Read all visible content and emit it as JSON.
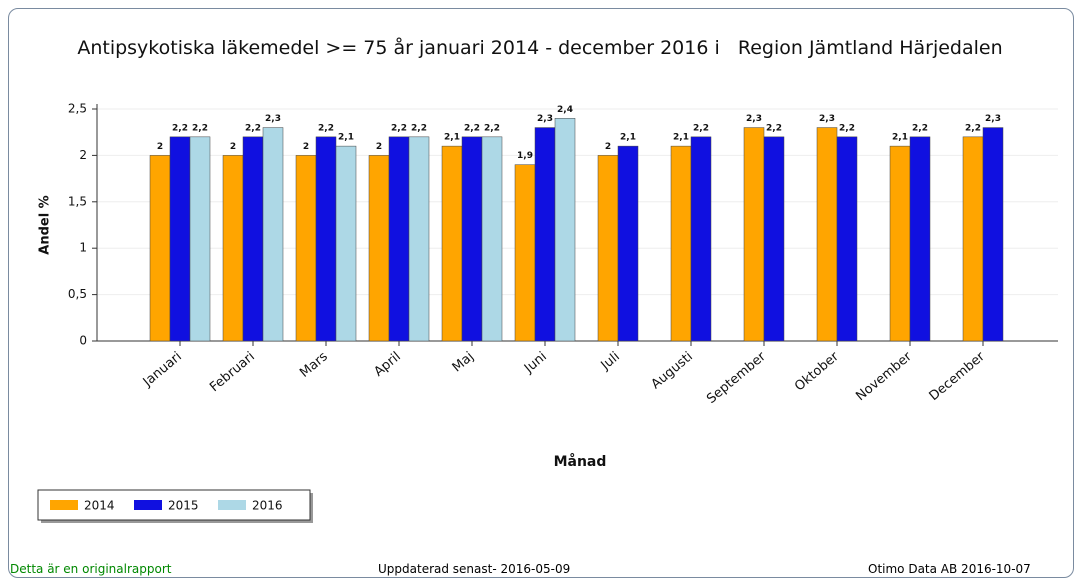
{
  "chart_data": {
    "type": "bar",
    "title": "Antipsykotiska läkemedel >= 75 år januari 2014 - december 2016 i   Region Jämtland Härjedalen",
    "x_label": "Månad",
    "y_label": "Andel %",
    "categories": [
      "Januari",
      "Februari",
      "Mars",
      "April",
      "Maj",
      "Juni",
      "Juli",
      "Augusti",
      "September",
      "Oktober",
      "November",
      "December"
    ],
    "series": [
      {
        "name": "2014",
        "color": "#ffa500",
        "values": [
          2,
          2,
          2,
          2,
          2.1,
          1.9,
          2,
          2.1,
          2.3,
          2.3,
          2.1,
          2.2
        ],
        "value_labels": [
          "2",
          "2",
          "2",
          "2",
          "2,1",
          "1,9",
          "2",
          "2,1",
          "2,3",
          "2,3",
          "2,1",
          "2,2"
        ]
      },
      {
        "name": "2015",
        "color": "#1010e0",
        "values": [
          2.2,
          2.2,
          2.2,
          2.2,
          2.2,
          2.3,
          2.1,
          2.2,
          2.2,
          2.2,
          2.2,
          2.3
        ],
        "value_labels": [
          "2,2",
          "2,2",
          "2,2",
          "2,2",
          "2,2",
          "2,3",
          "2,1",
          "2,2",
          "2,2",
          "2,2",
          "2,2",
          "2,3"
        ]
      },
      {
        "name": "2016",
        "color": "#add8e6",
        "values": [
          2.2,
          2.3,
          2.1,
          2.2,
          2.2,
          2.4,
          null,
          null,
          null,
          null,
          null,
          null
        ],
        "value_labels": [
          "2,2",
          "2,3",
          "2,1",
          "2,2",
          "2,2",
          "2,4",
          null,
          null,
          null,
          null,
          null,
          null
        ]
      }
    ],
    "ylim": [
      0,
      2.5
    ],
    "yticks": [
      0,
      {
        "value": 0.5,
        "label": "0,5"
      },
      1,
      {
        "value": 1.5,
        "label": "1,5"
      },
      2,
      {
        "value": 2.5,
        "label": "2,5"
      }
    ],
    "grid": true,
    "legend": "bottom-left"
  },
  "footer": {
    "left": "Detta är en originalrapport",
    "center": "Uppdaterad senast- 2016-05-09",
    "right": "Otimo Data AB 2016-10-07"
  }
}
